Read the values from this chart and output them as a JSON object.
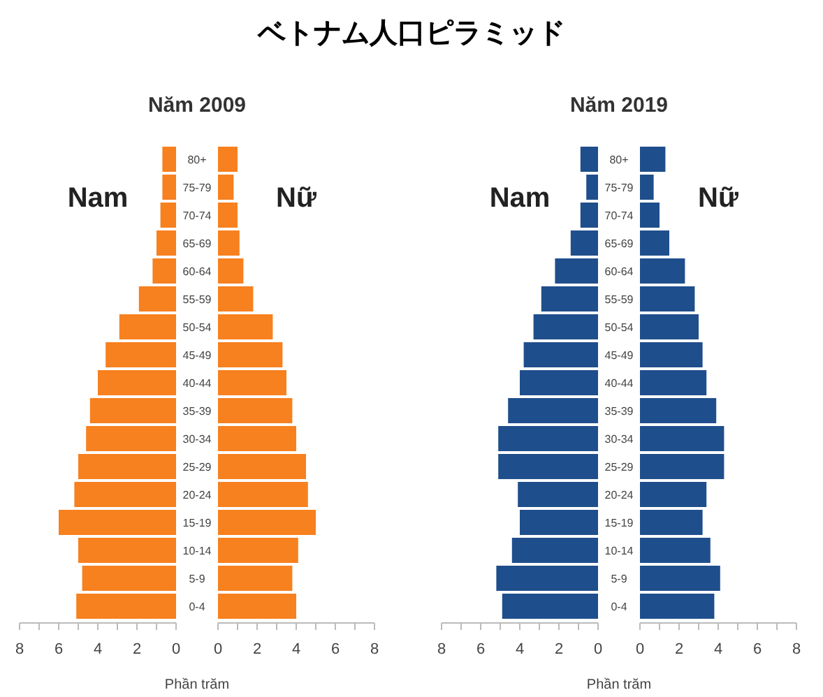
{
  "chart_data": [
    {
      "type": "other",
      "title": "ベトナム人口ピラミッド"
    },
    {
      "type": "bar",
      "orientation": "horizontal",
      "title": "Năm 2009",
      "xlabel": "Phần trăm",
      "categories": [
        "80+",
        "75-79",
        "70-74",
        "65-69",
        "60-64",
        "55-59",
        "50-54",
        "45-49",
        "40-44",
        "35-39",
        "30-34",
        "25-29",
        "20-24",
        "15-19",
        "10-14",
        "5-9",
        "0-4"
      ],
      "series": [
        {
          "name": "Nam",
          "color": "#f7801f",
          "values": [
            0.7,
            0.7,
            0.8,
            1.0,
            1.2,
            1.9,
            2.9,
            3.6,
            4.0,
            4.4,
            4.6,
            5.0,
            5.2,
            6.0,
            5.0,
            4.8,
            5.1
          ]
        }
      ],
      "xlim": [
        8,
        0
      ],
      "xticks": [
        8,
        {
          "value": 7,
          "label": null
        },
        6,
        {
          "value": 5,
          "label": null
        },
        4,
        {
          "value": 3,
          "label": null
        },
        2,
        {
          "value": 1,
          "label": null
        },
        0
      ]
    },
    {
      "type": "bar",
      "orientation": "horizontal",
      "tick_labels": "x",
      "categories": [
        null,
        null,
        null,
        null,
        null,
        null,
        null,
        null,
        null,
        null,
        null,
        null,
        null,
        null,
        null,
        null,
        null
      ],
      "series": [
        {
          "name": "Nữ",
          "color": "#f7801f",
          "values": [
            1.0,
            0.8,
            1.0,
            1.1,
            1.3,
            1.8,
            2.8,
            3.3,
            3.5,
            3.8,
            4.0,
            4.5,
            4.6,
            5.0,
            4.1,
            3.8,
            4.0
          ]
        }
      ],
      "xlim": [
        0,
        8
      ],
      "xticks": [
        0,
        {
          "value": 1,
          "label": null
        },
        2,
        {
          "value": 3,
          "label": null
        },
        4,
        {
          "value": 5,
          "label": null
        },
        6,
        {
          "value": 7,
          "label": null
        },
        8
      ]
    },
    {
      "type": "bar",
      "orientation": "horizontal",
      "title": "Năm 2019",
      "xlabel": "Phần trăm",
      "categories": [
        "80+",
        "75-79",
        "70-74",
        "65-69",
        "60-64",
        "55-59",
        "50-54",
        "45-49",
        "40-44",
        "35-39",
        "30-34",
        "25-29",
        "20-24",
        "15-19",
        "10-14",
        "5-9",
        "0-4"
      ],
      "series": [
        {
          "name": "Nam",
          "color": "#1f4e8c",
          "values": [
            0.9,
            0.6,
            0.9,
            1.4,
            2.2,
            2.9,
            3.3,
            3.8,
            4.0,
            4.6,
            5.1,
            5.1,
            4.1,
            4.0,
            4.4,
            5.2,
            4.9
          ]
        }
      ],
      "xlim": [
        8,
        0
      ],
      "xticks": [
        8,
        {
          "value": 7,
          "label": null
        },
        6,
        {
          "value": 5,
          "label": null
        },
        4,
        {
          "value": 3,
          "label": null
        },
        2,
        {
          "value": 1,
          "label": null
        },
        0
      ]
    },
    {
      "type": "bar",
      "orientation": "horizontal",
      "tick_labels": "x",
      "categories": [
        null,
        null,
        null,
        null,
        null,
        null,
        null,
        null,
        null,
        null,
        null,
        null,
        null,
        null,
        null,
        null,
        null
      ],
      "series": [
        {
          "name": "Nữ",
          "color": "#1f4e8c",
          "values": [
            1.3,
            0.7,
            1.0,
            1.5,
            2.3,
            2.8,
            3.0,
            3.2,
            3.4,
            3.9,
            4.3,
            4.3,
            3.4,
            3.2,
            3.6,
            4.1,
            3.8
          ]
        }
      ],
      "xlim": [
        0,
        8
      ],
      "xticks": [
        0,
        {
          "value": 1,
          "label": null
        },
        2,
        {
          "value": 3,
          "label": null
        },
        4,
        {
          "value": 5,
          "label": null
        },
        6,
        {
          "value": 7,
          "label": null
        },
        8
      ]
    }
  ]
}
